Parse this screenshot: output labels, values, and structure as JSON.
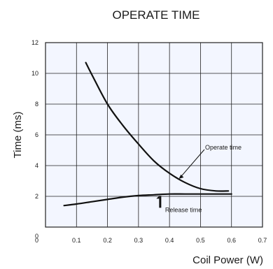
{
  "chart_data": {
    "type": "line",
    "title": "OPERATE TIME",
    "xlabel": "Coil Power (W)",
    "ylabel": "Time (ms)",
    "xlim": [
      0,
      0.7
    ],
    "ylim": [
      0,
      12
    ],
    "xticks": [
      0,
      0.1,
      0.2,
      0.3,
      0.4,
      0.5,
      0.6,
      0.7
    ],
    "xtick_labels": [
      "0",
      "0.1",
      "0.2",
      "0.3",
      "0.4",
      "0.5",
      "0.6",
      "0.7"
    ],
    "yticks": [
      0,
      2,
      4,
      6,
      8,
      10,
      12
    ],
    "ytick_labels": [
      "0",
      "2",
      "4",
      "6",
      "8",
      "10",
      "12"
    ],
    "grid": true,
    "series": [
      {
        "name": "Operate time",
        "x": [
          0.13,
          0.15,
          0.2,
          0.25,
          0.3,
          0.35,
          0.4,
          0.45,
          0.5,
          0.55,
          0.59
        ],
        "y": [
          10.7,
          9.9,
          8.0,
          6.6,
          5.4,
          4.3,
          3.5,
          2.9,
          2.5,
          2.35,
          2.35
        ]
      },
      {
        "name": "Release time",
        "x": [
          0.06,
          0.1,
          0.15,
          0.2,
          0.25,
          0.3,
          0.35,
          0.4,
          0.45,
          0.5,
          0.6
        ],
        "y": [
          1.4,
          1.5,
          1.65,
          1.8,
          1.95,
          2.05,
          2.1,
          2.15,
          2.15,
          2.15,
          2.15
        ]
      }
    ],
    "annotations": [
      {
        "text": "Operate time",
        "target_series": 0,
        "at_x": 0.43
      },
      {
        "text": "Release time",
        "target_series": 1,
        "at_x": 0.37
      }
    ]
  }
}
